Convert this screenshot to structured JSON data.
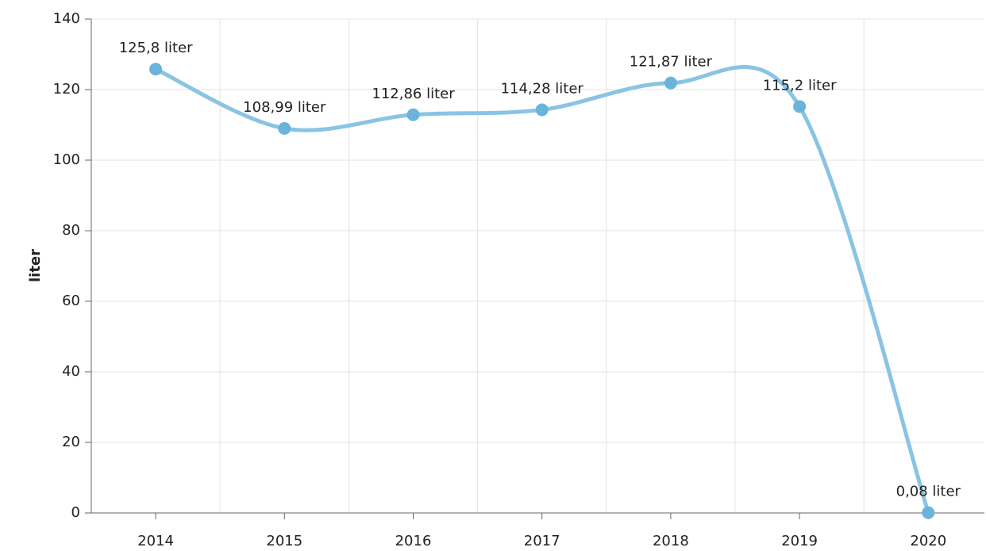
{
  "chart_data": {
    "type": "line",
    "y_label": "liter",
    "categories": [
      "2014",
      "2015",
      "2016",
      "2017",
      "2018",
      "2019",
      "2020"
    ],
    "series": [
      {
        "name": "liter",
        "color": "#89c4e4",
        "marker_color": "#6ab4dc",
        "values": [
          125.8,
          108.99,
          112.86,
          114.28,
          121.87,
          115.2,
          0.08
        ],
        "value_labels": [
          "125,8 liter",
          "108,99 liter",
          "112,86 liter",
          "114,28 liter",
          "121,87 liter",
          "115,2 liter",
          "0,08 liter"
        ]
      }
    ],
    "ylim": [
      0,
      140
    ],
    "yticks": [
      0,
      20,
      40,
      60,
      80,
      100,
      120,
      140
    ],
    "grid": true,
    "smooth": true
  }
}
